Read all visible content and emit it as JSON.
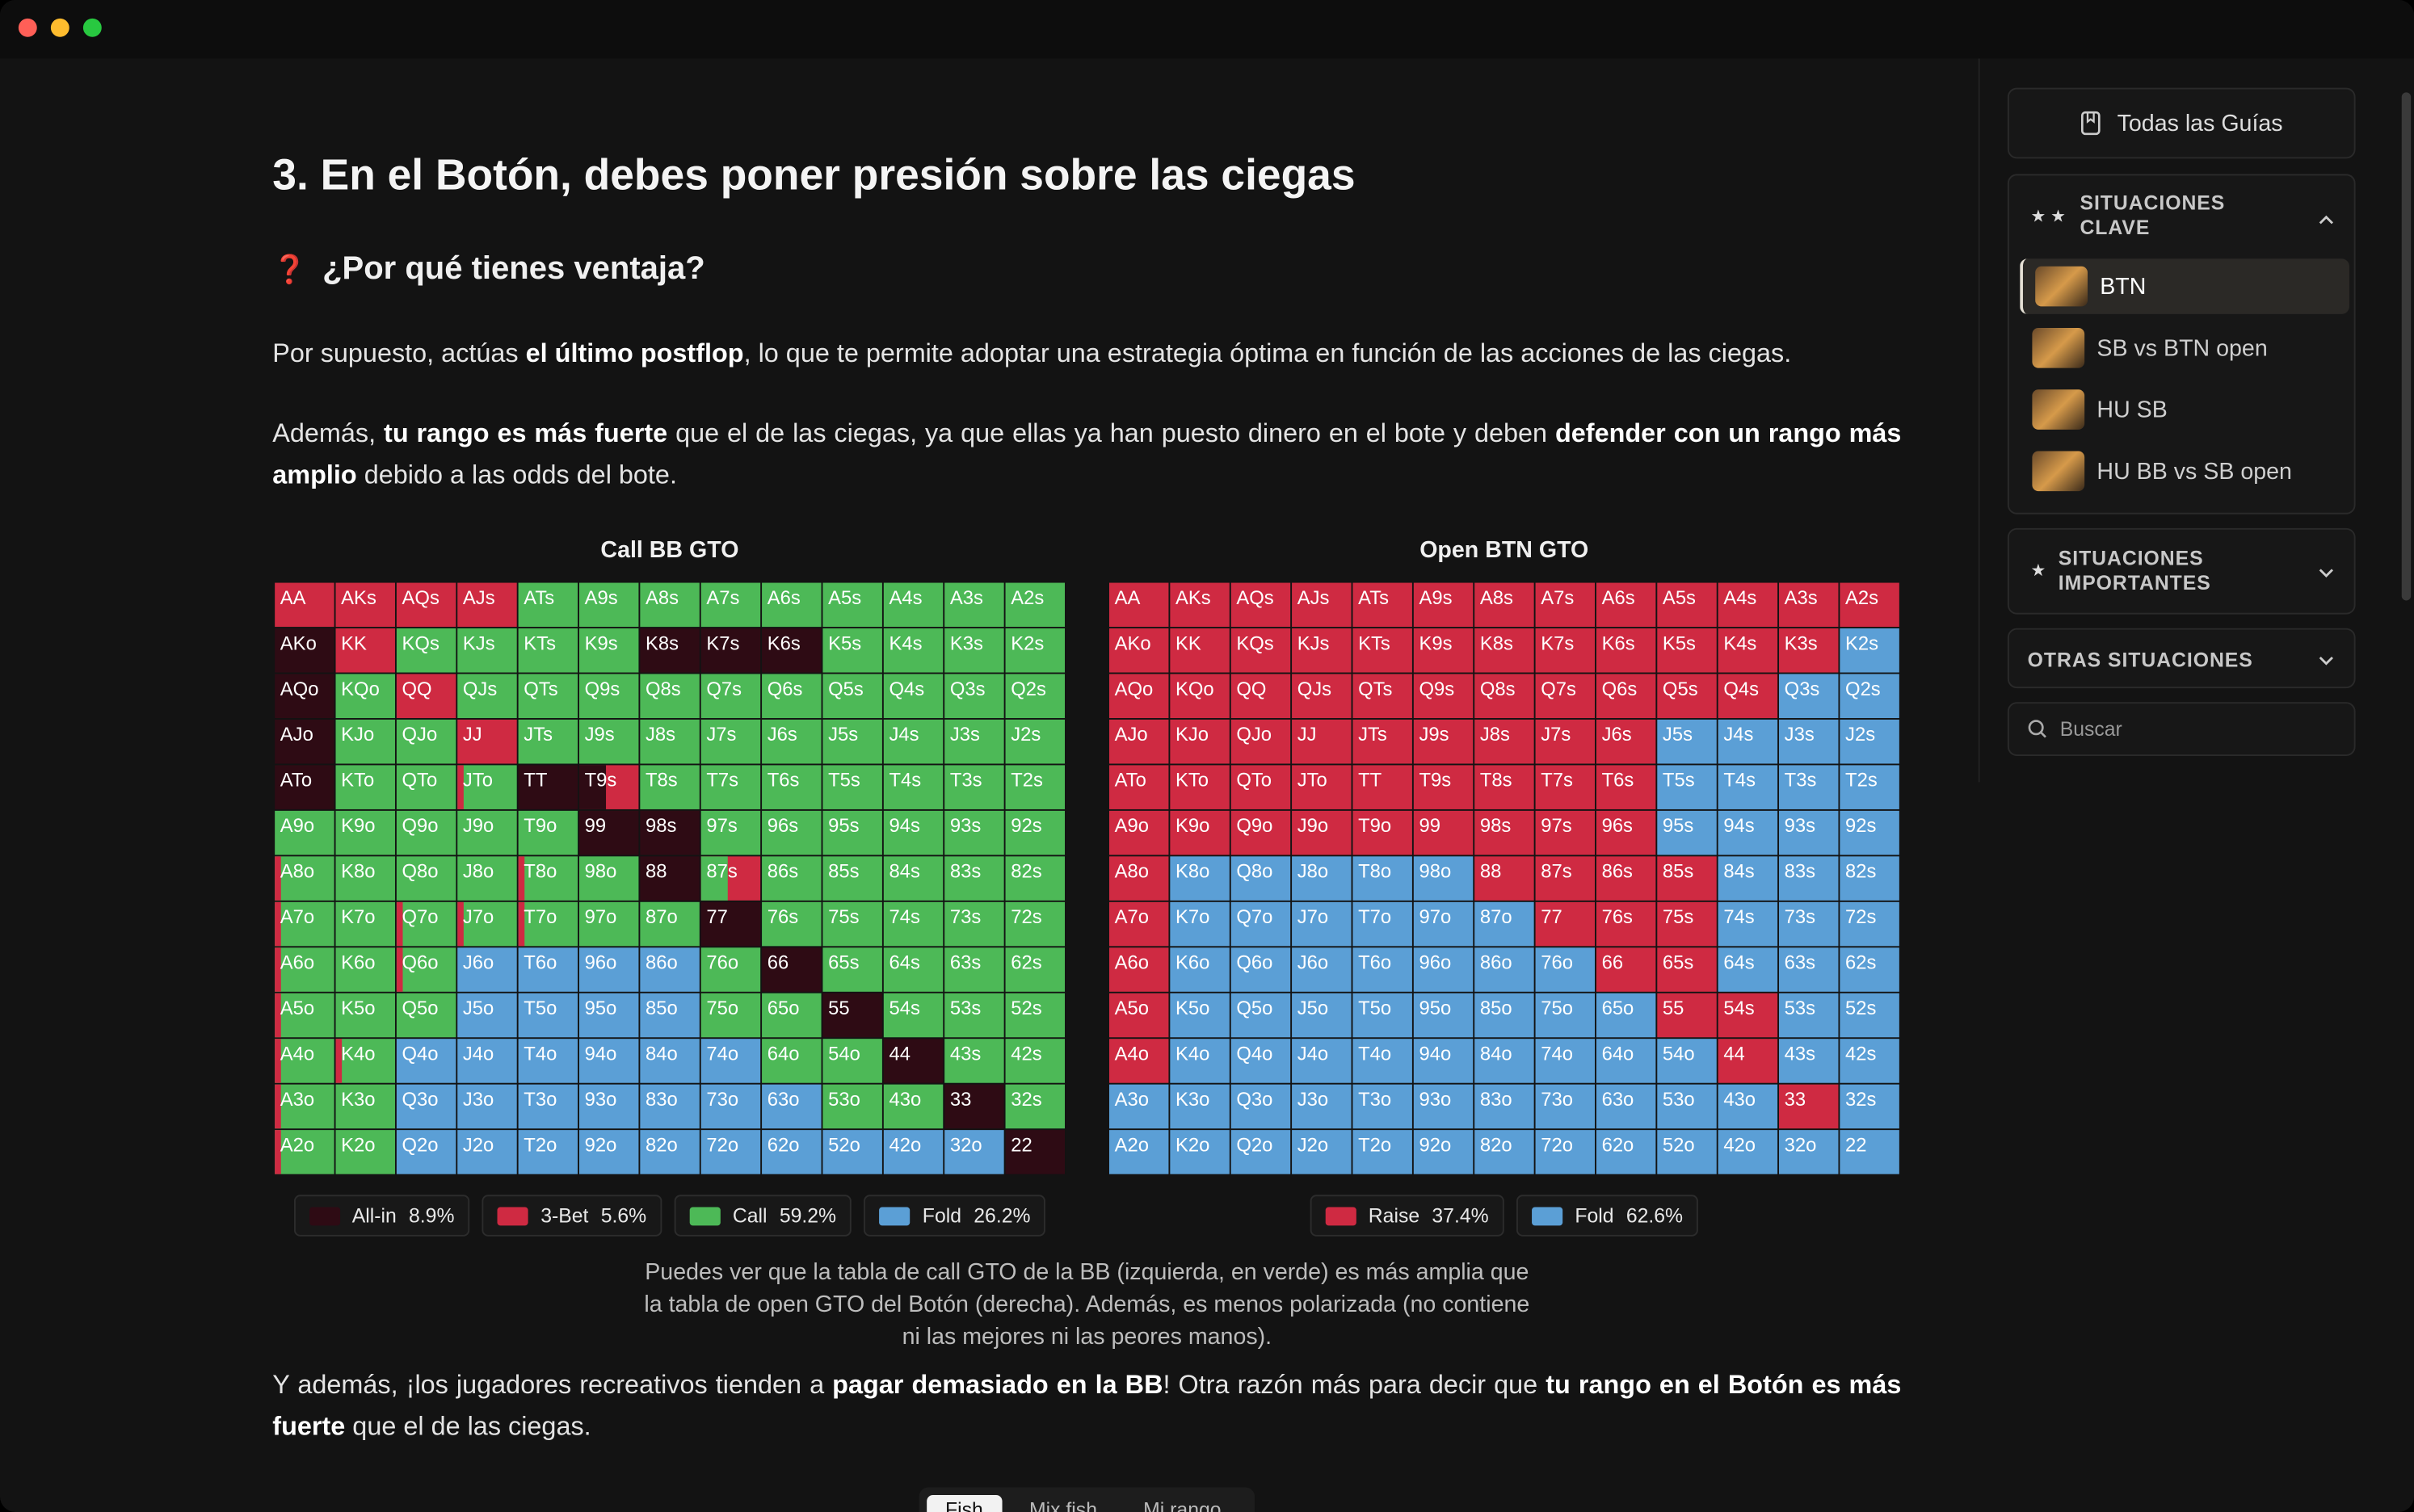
{
  "article": {
    "heading": "3. En el Botón, debes poner presión sobre las ciegas",
    "subheading_icon": "❓",
    "subheading": "¿Por qué tienes ventaja?",
    "paragraphs": [
      [
        {
          "text": "Por supuesto, actúas "
        },
        {
          "text": "el último postflop",
          "bold": true
        },
        {
          "text": ", lo que te permite adoptar una estrategia óptima en función de las acciones de las ciegas."
        }
      ],
      [
        {
          "text": "Además, "
        },
        {
          "text": "tu rango es más fuerte",
          "bold": true
        },
        {
          "text": " que el de las ciegas, ya que ellas ya han puesto dinero en el bote y deben "
        },
        {
          "text": "defender con un rango más amplio",
          "bold": true
        },
        {
          "text": " debido a las odds del bote."
        }
      ]
    ],
    "caption": [
      "Puedes ver que la tabla de call GTO de la BB (izquierda, en verde) es más amplia que",
      "la tabla de open GTO del Botón (derecha). Además, es menos polarizada (no contiene",
      "ni las mejores ni las peores manos)."
    ],
    "closing": [
      {
        "text": "Y además, ¡los jugadores recreativos tienden a "
      },
      {
        "text": "pagar demasiado en la BB",
        "bold": true
      },
      {
        "text": "! Otra razón más para decir que "
      },
      {
        "text": "tu rango en el Botón es más fuerte",
        "bold": true
      },
      {
        "text": " que el de las ciegas."
      }
    ],
    "tabs": [
      "Fish",
      "Mix fish",
      "Mi rango"
    ]
  },
  "hands": [
    [
      "AA",
      "AKs",
      "AQs",
      "AJs",
      "ATs",
      "A9s",
      "A8s",
      "A7s",
      "A6s",
      "A5s",
      "A4s",
      "A3s",
      "A2s"
    ],
    [
      "AKo",
      "KK",
      "KQs",
      "KJs",
      "KTs",
      "K9s",
      "K8s",
      "K7s",
      "K6s",
      "K5s",
      "K4s",
      "K3s",
      "K2s"
    ],
    [
      "AQo",
      "KQo",
      "QQ",
      "QJs",
      "QTs",
      "Q9s",
      "Q8s",
      "Q7s",
      "Q6s",
      "Q5s",
      "Q4s",
      "Q3s",
      "Q2s"
    ],
    [
      "AJo",
      "KJo",
      "QJo",
      "JJ",
      "JTs",
      "J9s",
      "J8s",
      "J7s",
      "J6s",
      "J5s",
      "J4s",
      "J3s",
      "J2s"
    ],
    [
      "ATo",
      "KTo",
      "QTo",
      "JTo",
      "TT",
      "T9s",
      "T8s",
      "T7s",
      "T6s",
      "T5s",
      "T4s",
      "T3s",
      "T2s"
    ],
    [
      "A9o",
      "K9o",
      "Q9o",
      "J9o",
      "T9o",
      "99",
      "98s",
      "97s",
      "96s",
      "95s",
      "94s",
      "93s",
      "92s"
    ],
    [
      "A8o",
      "K8o",
      "Q8o",
      "J8o",
      "T8o",
      "98o",
      "88",
      "87s",
      "86s",
      "85s",
      "84s",
      "83s",
      "82s"
    ],
    [
      "A7o",
      "K7o",
      "Q7o",
      "J7o",
      "T7o",
      "97o",
      "87o",
      "77",
      "76s",
      "75s",
      "74s",
      "73s",
      "72s"
    ],
    [
      "A6o",
      "K6o",
      "Q6o",
      "J6o",
      "T6o",
      "96o",
      "86o",
      "76o",
      "66",
      "65s",
      "64s",
      "63s",
      "62s"
    ],
    [
      "A5o",
      "K5o",
      "Q5o",
      "J5o",
      "T5o",
      "95o",
      "85o",
      "75o",
      "65o",
      "55",
      "54s",
      "53s",
      "52s"
    ],
    [
      "A4o",
      "K4o",
      "Q4o",
      "J4o",
      "T4o",
      "94o",
      "84o",
      "74o",
      "64o",
      "54o",
      "44",
      "43s",
      "42s"
    ],
    [
      "A3o",
      "K3o",
      "Q3o",
      "J3o",
      "T3o",
      "93o",
      "83o",
      "73o",
      "63o",
      "53o",
      "43o",
      "33",
      "32s"
    ],
    [
      "A2o",
      "K2o",
      "Q2o",
      "J2o",
      "T2o",
      "92o",
      "82o",
      "72o",
      "62o",
      "52o",
      "42o",
      "32o",
      "22"
    ]
  ],
  "charts": [
    {
      "title": "Call BB GTO",
      "legend": [
        {
          "label": "All-in",
          "share": "8.9%",
          "color": "#2e0b14"
        },
        {
          "label": "3-Bet",
          "share": "5.6%",
          "color": "#cf2a42"
        },
        {
          "label": "Call",
          "share": "59.2%",
          "color": "#4db957"
        },
        {
          "label": "Fold",
          "share": "26.2%",
          "color": "#5b9fd6"
        }
      ],
      "cells": [
        [
          1,
          1,
          1,
          1,
          2,
          2,
          2,
          2,
          2,
          2,
          2,
          2,
          2
        ],
        [
          0,
          1,
          2,
          2,
          2,
          2,
          0,
          0,
          0,
          2,
          2,
          2,
          2
        ],
        [
          0,
          2,
          1,
          2,
          2,
          2,
          2,
          2,
          2,
          2,
          2,
          2,
          2
        ],
        [
          0,
          2,
          2,
          1,
          2,
          2,
          2,
          2,
          2,
          2,
          2,
          2,
          2
        ],
        [
          0,
          2,
          2,
          [
            1,
            2
          ],
          0,
          [
            0,
            1
          ],
          2,
          2,
          2,
          2,
          2,
          2,
          2
        ],
        [
          2,
          2,
          2,
          2,
          2,
          0,
          0,
          2,
          2,
          2,
          2,
          2,
          2
        ],
        [
          [
            1,
            2
          ],
          2,
          2,
          2,
          [
            1,
            2
          ],
          2,
          0,
          [
            2,
            1
          ],
          2,
          2,
          2,
          2,
          2
        ],
        [
          [
            1,
            2
          ],
          2,
          [
            1,
            2
          ],
          [
            1,
            2
          ],
          [
            1,
            2
          ],
          2,
          2,
          0,
          2,
          2,
          2,
          2,
          2
        ],
        [
          [
            1,
            2
          ],
          2,
          [
            1,
            2
          ],
          3,
          3,
          3,
          3,
          2,
          0,
          2,
          2,
          2,
          2
        ],
        [
          [
            1,
            2
          ],
          2,
          2,
          3,
          3,
          3,
          3,
          2,
          2,
          0,
          2,
          2,
          2
        ],
        [
          [
            1,
            2
          ],
          [
            1,
            2
          ],
          3,
          3,
          3,
          3,
          3,
          3,
          2,
          2,
          0,
          2,
          2
        ],
        [
          [
            1,
            2
          ],
          2,
          3,
          3,
          3,
          3,
          3,
          3,
          3,
          2,
          2,
          0,
          2
        ],
        [
          [
            1,
            2
          ],
          2,
          3,
          3,
          3,
          3,
          3,
          3,
          3,
          3,
          3,
          3,
          0
        ]
      ]
    },
    {
      "title": "Open BTN GTO",
      "legend": [
        {
          "label": "Raise",
          "share": "37.4%",
          "color": "#cf2a42"
        },
        {
          "label": "Fold",
          "share": "62.6%",
          "color": "#5b9fd6"
        }
      ],
      "cells": [
        [
          0,
          0,
          0,
          0,
          0,
          0,
          0,
          0,
          0,
          0,
          0,
          0,
          0
        ],
        [
          0,
          0,
          0,
          0,
          0,
          0,
          0,
          0,
          0,
          0,
          0,
          0,
          1
        ],
        [
          0,
          0,
          0,
          0,
          0,
          0,
          0,
          0,
          0,
          0,
          0,
          1,
          1
        ],
        [
          0,
          0,
          0,
          0,
          0,
          0,
          0,
          0,
          0,
          1,
          1,
          1,
          1
        ],
        [
          0,
          0,
          0,
          0,
          0,
          0,
          0,
          0,
          0,
          1,
          1,
          1,
          1
        ],
        [
          0,
          0,
          0,
          0,
          0,
          0,
          0,
          0,
          0,
          1,
          1,
          1,
          1
        ],
        [
          0,
          1,
          1,
          1,
          1,
          1,
          0,
          0,
          0,
          0,
          1,
          1,
          1
        ],
        [
          0,
          1,
          1,
          1,
          1,
          1,
          1,
          0,
          0,
          0,
          1,
          1,
          1
        ],
        [
          0,
          1,
          1,
          1,
          1,
          1,
          1,
          1,
          0,
          0,
          1,
          1,
          1
        ],
        [
          0,
          1,
          1,
          1,
          1,
          1,
          1,
          1,
          1,
          0,
          0,
          1,
          1
        ],
        [
          0,
          1,
          1,
          1,
          1,
          1,
          1,
          1,
          1,
          1,
          0,
          1,
          1
        ],
        [
          1,
          1,
          1,
          1,
          1,
          1,
          1,
          1,
          1,
          1,
          1,
          0,
          1
        ],
        [
          1,
          1,
          1,
          1,
          1,
          1,
          1,
          1,
          1,
          1,
          1,
          1,
          1
        ]
      ]
    }
  ],
  "sidebar": {
    "all_guides": "Todas las Guías",
    "sections": [
      {
        "title": "SITUACIONES CLAVE",
        "items": [
          "BTN",
          "SB vs BTN open",
          "HU SB",
          "HU BB vs SB open"
        ]
      },
      {
        "title": "SITUACIONES IMPORTANTES"
      },
      {
        "title": "OTRAS SITUACIONES"
      }
    ],
    "search": "Buscar"
  }
}
